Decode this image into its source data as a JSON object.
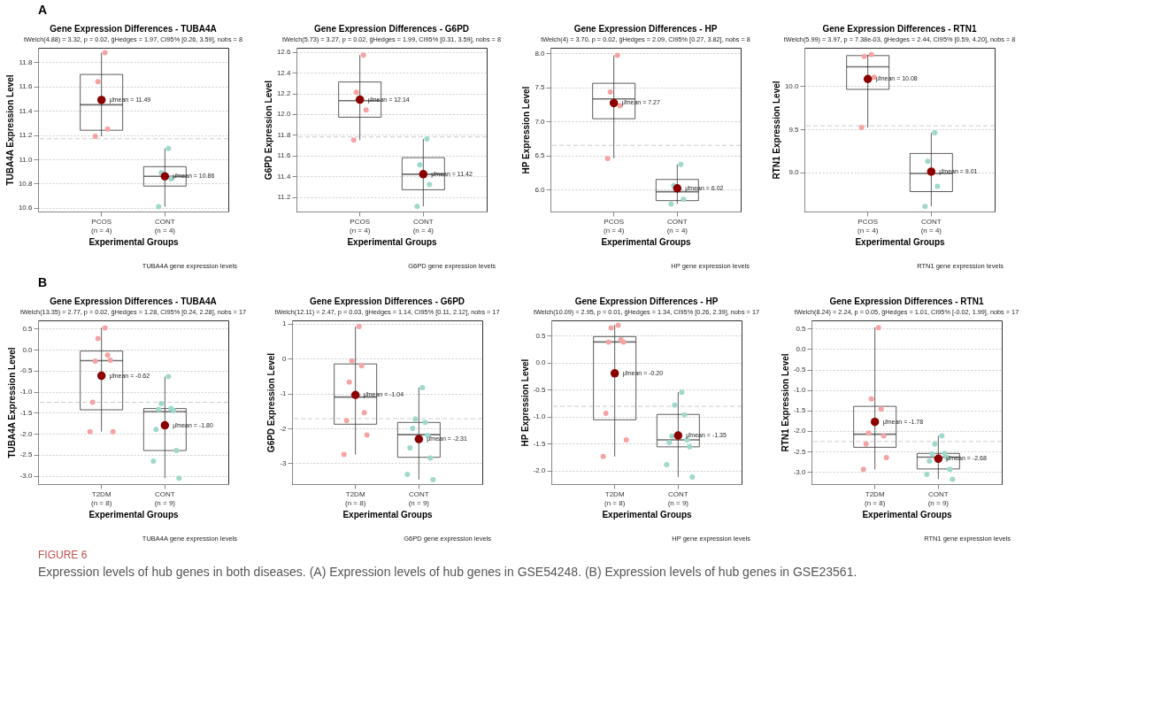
{
  "chart_data": [
    {
      "type": "box",
      "title": "Gene Expression Differences - TUBA4A",
      "subtitle": "tWelch(4.88) = 3.32, p = 0.02, ĝHedges = 1.97, CI95% [0.26, 3.59], nobs = 8",
      "xlabel": "Experimental Groups",
      "ylabel": "TUBA4A Expression Level",
      "annotations": [
        "TUBA4A gene expression levels",
        "A"
      ],
      "categories": [
        "PCOS\n(n = 4)",
        "CONT\n(n = 4)"
      ],
      "ylim": [
        10.57,
        11.92
      ],
      "yticks": [
        10.6,
        10.8,
        {
          "value": 11,
          "label": "11.0"
        },
        11.2,
        11.4,
        11.6,
        11.8
      ],
      "grid": "y",
      "marker": "circle",
      "boxes": [
        {
          "low": 11.19,
          "q1": 11.24,
          "median": 11.45,
          "q3": 11.7,
          "high": 11.88
        },
        {
          "low": 10.61,
          "q1": 10.78,
          "median": 10.86,
          "q3": 10.94,
          "high": 11.09
        }
      ],
      "series": [
        {
          "type": "scatter",
          "color": "#f5a3a3",
          "x": [
            "PCOS\n(n = 4)",
            "PCOS\n(n = 4)",
            "PCOS\n(n = 4)",
            "PCOS\n(n = 4)"
          ],
          "values": [
            11.88,
            11.64,
            11.25,
            11.19
          ]
        },
        {
          "type": "scatter",
          "color": "#9ed9cc",
          "x": [
            "CONT\n(n = 4)",
            "CONT\n(n = 4)",
            "CONT\n(n = 4)",
            "CONT\n(n = 4)"
          ],
          "values": [
            11.09,
            10.89,
            10.84,
            10.61
          ]
        },
        {
          "type": "scatter",
          "color": "#8b0000",
          "x": [
            "PCOS\n(n = 4)",
            "CONT\n(n = 4)"
          ],
          "values": [
            11.49,
            10.86
          ],
          "value_labels": [
            "μ̂mean = 11.49",
            "μ̂mean = 10.86"
          ]
        }
      ],
      "ref_lines": [
        {
          "axis": "y",
          "value": 11.17,
          "color": "#cccccc",
          "line_style": "dashed"
        }
      ]
    },
    {
      "type": "box",
      "title": "Gene Expression Differences - G6PD",
      "subtitle": "tWelch(5.73) = 3.27, p = 0.02, ĝHedges = 1.99, CI95% [0.31, 3.59], nobs = 8",
      "xlabel": "Experimental Groups",
      "ylabel": "G6PD Expression Level",
      "annotations": [
        "G6PD gene expression levels"
      ],
      "categories": [
        "PCOS\n(n = 4)",
        "CONT\n(n = 4)"
      ],
      "ylim": [
        11.06,
        12.64
      ],
      "yticks": [
        11.2,
        11.4,
        11.6,
        11.8,
        {
          "value": 12,
          "label": "12.0"
        },
        12.2,
        12.4,
        12.6
      ],
      "grid": "y",
      "marker": "circle",
      "boxes": [
        {
          "low": 11.75,
          "q1": 11.97,
          "median": 12.13,
          "q3": 12.31,
          "high": 12.57
        },
        {
          "low": 11.11,
          "q1": 11.27,
          "median": 11.42,
          "q3": 11.58,
          "high": 11.76
        }
      ],
      "series": [
        {
          "type": "scatter",
          "color": "#f5a3a3",
          "x": [
            "PCOS\n(n = 4)",
            "PCOS\n(n = 4)",
            "PCOS\n(n = 4)",
            "PCOS\n(n = 4)"
          ],
          "values": [
            12.57,
            12.21,
            12.04,
            11.75
          ]
        },
        {
          "type": "scatter",
          "color": "#9ed9cc",
          "x": [
            "CONT\n(n = 4)",
            "CONT\n(n = 4)",
            "CONT\n(n = 4)",
            "CONT\n(n = 4)"
          ],
          "values": [
            11.76,
            11.51,
            11.32,
            11.11
          ]
        },
        {
          "type": "scatter",
          "color": "#8b0000",
          "x": [
            "PCOS\n(n = 4)",
            "CONT\n(n = 4)"
          ],
          "values": [
            12.14,
            11.42
          ],
          "value_labels": [
            "μ̂mean = 12.14",
            "μ̂mean = 11.42"
          ]
        }
      ],
      "ref_lines": [
        {
          "axis": "y",
          "value": 11.78,
          "color": "#cccccc",
          "line_style": "dashed"
        }
      ]
    },
    {
      "type": "box",
      "title": "Gene Expression Differences - HP",
      "subtitle": "tWelch(4) = 3.70, p = 0.02, ĝHedges = 2.09, CI95% [0.27, 3.82], nobs = 8",
      "xlabel": "Experimental Groups",
      "ylabel": "HP Expression Level",
      "annotations": [
        "HP gene expression levels"
      ],
      "categories": [
        "PCOS\n(n = 4)",
        "CONT\n(n = 4)"
      ],
      "ylim": [
        5.68,
        8.08
      ],
      "yticks": [
        {
          "value": 6,
          "label": "6.0"
        },
        6.5,
        {
          "value": 7,
          "label": "7.0"
        },
        7.5,
        {
          "value": 8,
          "label": "8.0"
        }
      ],
      "grid": "y",
      "marker": "circle",
      "boxes": [
        {
          "low": 6.46,
          "q1": 7.04,
          "median": 7.33,
          "q3": 7.56,
          "high": 7.97
        },
        {
          "low": 5.79,
          "q1": 5.84,
          "median": 5.97,
          "q3": 6.15,
          "high": 6.37
        }
      ],
      "series": [
        {
          "type": "scatter",
          "color": "#f5a3a3",
          "x": [
            "PCOS\n(n = 4)",
            "PCOS\n(n = 4)",
            "PCOS\n(n = 4)",
            "PCOS\n(n = 4)"
          ],
          "values": [
            7.97,
            7.43,
            7.23,
            6.46
          ]
        },
        {
          "type": "scatter",
          "color": "#9ed9cc",
          "x": [
            "CONT\n(n = 4)",
            "CONT\n(n = 4)",
            "CONT\n(n = 4)",
            "CONT\n(n = 4)"
          ],
          "values": [
            6.37,
            6.06,
            5.86,
            5.79
          ]
        },
        {
          "type": "scatter",
          "color": "#8b0000",
          "x": [
            "PCOS\n(n = 4)",
            "CONT\n(n = 4)"
          ],
          "values": [
            7.27,
            6.02
          ],
          "value_labels": [
            "μ̂mean = 7.27",
            "μ̂mean = 6.02"
          ]
        }
      ],
      "ref_lines": [
        {
          "axis": "y",
          "value": 6.65,
          "color": "#cccccc",
          "line_style": "dashed"
        }
      ]
    },
    {
      "type": "box",
      "title": "Gene Expression Differences - RTN1",
      "subtitle": "tWelch(5.99) = 3.97, p = 7.38e-03, ĝHedges = 2.44, CI95% [0.59, 4.20], nobs = 8",
      "xlabel": "Experimental Groups",
      "ylabel": "RTN1 Expression Level",
      "annotations": [
        "RTN1 gene expression levels"
      ],
      "categories": [
        "PCOS\n(n = 4)",
        "CONT\n(n = 4)"
      ],
      "ylim": [
        8.55,
        10.44
      ],
      "yticks": [
        {
          "value": 9,
          "label": "9.0"
        },
        9.5,
        {
          "value": 10,
          "label": "10.0"
        }
      ],
      "grid": "y",
      "marker": "circle",
      "boxes": [
        {
          "low": 9.52,
          "q1": 9.96,
          "median": 10.22,
          "q3": 10.35,
          "high": 10.36
        },
        {
          "low": 8.61,
          "q1": 8.78,
          "median": 8.99,
          "q3": 9.22,
          "high": 9.46
        }
      ],
      "series": [
        {
          "type": "scatter",
          "color": "#f5a3a3",
          "x": [
            "PCOS\n(n = 4)",
            "PCOS\n(n = 4)",
            "PCOS\n(n = 4)",
            "PCOS\n(n = 4)"
          ],
          "values": [
            10.36,
            10.34,
            10.1,
            9.52
          ]
        },
        {
          "type": "scatter",
          "color": "#9ed9cc",
          "x": [
            "CONT\n(n = 4)",
            "CONT\n(n = 4)",
            "CONT\n(n = 4)",
            "CONT\n(n = 4)"
          ],
          "values": [
            9.46,
            9.13,
            8.84,
            8.61
          ]
        },
        {
          "type": "scatter",
          "color": "#8b0000",
          "x": [
            "PCOS\n(n = 4)",
            "CONT\n(n = 4)"
          ],
          "values": [
            10.08,
            9.01
          ],
          "value_labels": [
            "μ̂mean = 10.08",
            "μ̂mean = 9.01"
          ]
        }
      ],
      "ref_lines": [
        {
          "axis": "y",
          "value": 9.54,
          "color": "#cccccc",
          "line_style": "dashed"
        }
      ]
    },
    {
      "type": "box",
      "title": "Gene Expression Differences - TUBA4A",
      "subtitle": "tWelch(13.35) = 2.77, p = 0.02, ĝHedges = 1.28, CI95% [0.24, 2.28], nobs = 17",
      "xlabel": "Experimental Groups",
      "ylabel": "TUBA4A Expression Level",
      "annotations": [
        "TUBA4A gene expression levels",
        "B"
      ],
      "categories": [
        "T2DM\n(n = 8)",
        "CONT\n(n = 9)"
      ],
      "ylim": [
        -3.2,
        0.7
      ],
      "yticks": [
        {
          "value": -3,
          "label": "-3.0"
        },
        -2.5,
        {
          "value": -2,
          "label": "-2.0"
        },
        -1.5,
        {
          "value": -1,
          "label": "-1.0"
        },
        -0.5,
        {
          "value": 0,
          "label": "0.0"
        },
        0.5
      ],
      "grid": "y",
      "marker": "circle",
      "boxes": [
        {
          "low": -1.95,
          "q1": -1.43,
          "median": -0.26,
          "q3": -0.03,
          "high": 0.53
        },
        {
          "low": -3.06,
          "q1": -2.4,
          "median": -1.47,
          "q3": -1.4,
          "high": -0.64
        }
      ],
      "series": [
        {
          "type": "scatter",
          "color": "#f5a3a3",
          "x": [
            "T2DM\n(n = 8)",
            "T2DM\n(n = 8)",
            "T2DM\n(n = 8)",
            "T2DM\n(n = 8)",
            "T2DM\n(n = 8)",
            "T2DM\n(n = 8)",
            "T2DM\n(n = 8)",
            "T2DM\n(n = 8)"
          ],
          "values": [
            0.52,
            0.27,
            -0.13,
            -0.27,
            -0.25,
            -1.25,
            -1.95,
            -1.95
          ]
        },
        {
          "type": "scatter",
          "color": "#9ed9cc",
          "x": [
            "CONT\n(n = 9)",
            "CONT\n(n = 9)",
            "CONT\n(n = 9)",
            "CONT\n(n = 9)",
            "CONT\n(n = 9)",
            "CONT\n(n = 9)",
            "CONT\n(n = 9)",
            "CONT\n(n = 9)",
            "CONT\n(n = 9)"
          ],
          "values": [
            -0.64,
            -1.28,
            -1.4,
            -1.42,
            -1.45,
            -1.9,
            -2.4,
            -2.65,
            -3.06
          ]
        },
        {
          "type": "scatter",
          "color": "#8b0000",
          "x": [
            "T2DM\n(n = 8)",
            "CONT\n(n = 9)"
          ],
          "values": [
            -0.62,
            -1.8
          ],
          "value_labels": [
            "μ̂mean = -0.62",
            "μ̂mean = -1.80"
          ]
        }
      ],
      "ref_lines": [
        {
          "axis": "y",
          "value": -1.25,
          "color": "#cccccc",
          "line_style": "dashed"
        }
      ]
    },
    {
      "type": "box",
      "title": "Gene Expression Differences - G6PD",
      "subtitle": "tWelch(12.11) = 2.47, p = 0.03, ĝHedges = 1.14, CI95% [0.11, 2.12], nobs = 17",
      "xlabel": "Experimental Groups",
      "ylabel": "G6PD Expression Level",
      "annotations": [
        "G6PD gene expression levels"
      ],
      "categories": [
        "T2DM\n(n = 8)",
        "CONT\n(n = 9)"
      ],
      "ylim": [
        -3.6,
        1.1
      ],
      "yticks": [
        -3,
        -2,
        -1,
        0,
        1
      ],
      "grid": "y",
      "marker": "circle",
      "boxes": [
        {
          "low": -2.75,
          "q1": -1.88,
          "median": -1.1,
          "q3": -0.15,
          "high": 0.92
        },
        {
          "low": -3.47,
          "q1": -2.83,
          "median": -2.18,
          "q3": -1.83,
          "high": -0.83
        }
      ],
      "series": [
        {
          "type": "scatter",
          "color": "#f5a3a3",
          "x": [
            "T2DM\n(n = 8)",
            "T2DM\n(n = 8)",
            "T2DM\n(n = 8)",
            "T2DM\n(n = 8)",
            "T2DM\n(n = 8)",
            "T2DM\n(n = 8)",
            "T2DM\n(n = 8)",
            "T2DM\n(n = 8)"
          ],
          "values": [
            0.92,
            -0.06,
            -0.2,
            -0.67,
            -1.55,
            -1.78,
            -2.19,
            -2.75
          ]
        },
        {
          "type": "scatter",
          "color": "#9ed9cc",
          "x": [
            "CONT\n(n = 9)",
            "CONT\n(n = 9)",
            "CONT\n(n = 9)",
            "CONT\n(n = 9)",
            "CONT\n(n = 9)",
            "CONT\n(n = 9)",
            "CONT\n(n = 9)",
            "CONT\n(n = 9)",
            "CONT\n(n = 9)"
          ],
          "values": [
            -0.83,
            -1.73,
            -1.83,
            -2.0,
            -2.2,
            -2.56,
            -2.85,
            -3.32,
            -3.47
          ]
        },
        {
          "type": "scatter",
          "color": "#8b0000",
          "x": [
            "T2DM\n(n = 8)",
            "CONT\n(n = 9)"
          ],
          "values": [
            -1.04,
            -2.31
          ],
          "value_labels": [
            "μ̂mean = -1.04",
            "μ̂mean = -2.31"
          ]
        }
      ],
      "ref_lines": [
        {
          "axis": "y",
          "value": -1.72,
          "color": "#cccccc",
          "line_style": "dashed"
        }
      ]
    },
    {
      "type": "box",
      "title": "Gene Expression Differences - HP",
      "subtitle": "tWelch(10.09) = 2.95, p = 0.01, ĝHedges = 1.34, CI95% [0.26, 2.39], nobs = 17",
      "xlabel": "Experimental Groups",
      "ylabel": "HP Expression Level",
      "annotations": [
        "HP gene expression levels"
      ],
      "categories": [
        "T2DM\n(n = 8)",
        "CONT\n(n = 9)"
      ],
      "ylim": [
        -2.25,
        0.78
      ],
      "yticks": [
        {
          "value": -2,
          "label": "-2.0"
        },
        -1.5,
        {
          "value": -1,
          "label": "-1.0"
        },
        -0.5,
        {
          "value": 0,
          "label": "0.0"
        },
        0.5
      ],
      "grid": "y",
      "marker": "circle",
      "boxes": [
        {
          "low": -1.74,
          "q1": -1.06,
          "median": 0.38,
          "q3": 0.48,
          "high": 0.7
        },
        {
          "low": -2.12,
          "q1": -1.56,
          "median": -1.43,
          "q3": -0.96,
          "high": -0.55
        }
      ],
      "series": [
        {
          "type": "scatter",
          "color": "#f5a3a3",
          "x": [
            "T2DM\n(n = 8)",
            "T2DM\n(n = 8)",
            "T2DM\n(n = 8)",
            "T2DM\n(n = 8)",
            "T2DM\n(n = 8)",
            "T2DM\n(n = 8)",
            "T2DM\n(n = 8)",
            "T2DM\n(n = 8)"
          ],
          "values": [
            0.69,
            0.64,
            0.42,
            0.38,
            0.38,
            -0.94,
            -1.43,
            -1.74
          ]
        },
        {
          "type": "scatter",
          "color": "#9ed9cc",
          "x": [
            "CONT\n(n = 9)",
            "CONT\n(n = 9)",
            "CONT\n(n = 9)",
            "CONT\n(n = 9)",
            "CONT\n(n = 9)",
            "CONT\n(n = 9)",
            "CONT\n(n = 9)",
            "CONT\n(n = 9)",
            "CONT\n(n = 9)"
          ],
          "values": [
            -0.55,
            -0.79,
            -0.97,
            -1.36,
            -1.43,
            -1.48,
            -1.56,
            -1.89,
            -2.12
          ]
        },
        {
          "type": "scatter",
          "color": "#8b0000",
          "x": [
            "T2DM\n(n = 8)",
            "CONT\n(n = 9)"
          ],
          "values": [
            -0.2,
            -1.35
          ],
          "value_labels": [
            "μ̂mean = -0.20",
            "μ̂mean = -1.35"
          ]
        }
      ],
      "ref_lines": [
        {
          "axis": "y",
          "value": -0.81,
          "color": "#cccccc",
          "line_style": "dashed"
        }
      ]
    },
    {
      "type": "box",
      "title": "Gene Expression Differences - RTN1",
      "subtitle": "tWelch(8.24) = 2.24, p = 0.05, ĝHedges = 1.01, CI95% [-0.02, 1.99], nobs = 17",
      "xlabel": "Experimental Groups",
      "ylabel": "RTN1 Expression Level",
      "annotations": [
        "RTN1 gene expression levels",
        "FIGURE 6",
        "Expression levels of hub genes in both diseases. (A) Expression levels of hub genes in GSE54248. (B) Expression levels of hub genes in GSE23561."
      ],
      "categories": [
        "T2DM\n(n = 8)",
        "CONT\n(n = 9)"
      ],
      "ylim": [
        -3.3,
        0.7
      ],
      "yticks": [
        {
          "value": -3,
          "label": "-3.0"
        },
        -2.5,
        {
          "value": -2,
          "label": "-2.0"
        },
        -1.5,
        {
          "value": -1,
          "label": "-1.0"
        },
        -0.5,
        {
          "value": 0,
          "label": "0.0"
        },
        0.5
      ],
      "grid": "y",
      "marker": "circle",
      "boxes": [
        {
          "low": -2.94,
          "q1": -2.4,
          "median": -2.08,
          "q3": -1.4,
          "high": 0.53
        },
        {
          "low": -3.18,
          "q1": -2.93,
          "median": -2.64,
          "q3": -2.55,
          "high": -2.12
        }
      ],
      "series": [
        {
          "type": "scatter",
          "color": "#f5a3a3",
          "x": [
            "T2DM\n(n = 8)",
            "T2DM\n(n = 8)",
            "T2DM\n(n = 8)",
            "T2DM\n(n = 8)",
            "T2DM\n(n = 8)",
            "T2DM\n(n = 8)",
            "T2DM\n(n = 8)",
            "T2DM\n(n = 8)"
          ],
          "values": [
            0.52,
            -1.22,
            -1.47,
            -2.05,
            -2.12,
            -2.32,
            -2.65,
            -2.94
          ]
        },
        {
          "type": "scatter",
          "color": "#9ed9cc",
          "x": [
            "CONT\n(n = 9)",
            "CONT\n(n = 9)",
            "CONT\n(n = 9)",
            "CONT\n(n = 9)",
            "CONT\n(n = 9)",
            "CONT\n(n = 9)",
            "CONT\n(n = 9)",
            "CONT\n(n = 9)",
            "CONT\n(n = 9)"
          ],
          "values": [
            -2.12,
            -2.32,
            -2.55,
            -2.56,
            -2.65,
            -2.74,
            -2.94,
            -3.06,
            -3.18
          ]
        },
        {
          "type": "scatter",
          "color": "#8b0000",
          "x": [
            "T2DM\n(n = 8)",
            "CONT\n(n = 9)"
          ],
          "values": [
            -1.78,
            -2.68
          ],
          "value_labels": [
            "μ̂mean = -1.78",
            "μ̂mean = -2.68"
          ]
        }
      ],
      "ref_lines": [
        {
          "axis": "y",
          "value": -2.26,
          "color": "#cccccc",
          "line_style": "dashed"
        }
      ]
    }
  ]
}
